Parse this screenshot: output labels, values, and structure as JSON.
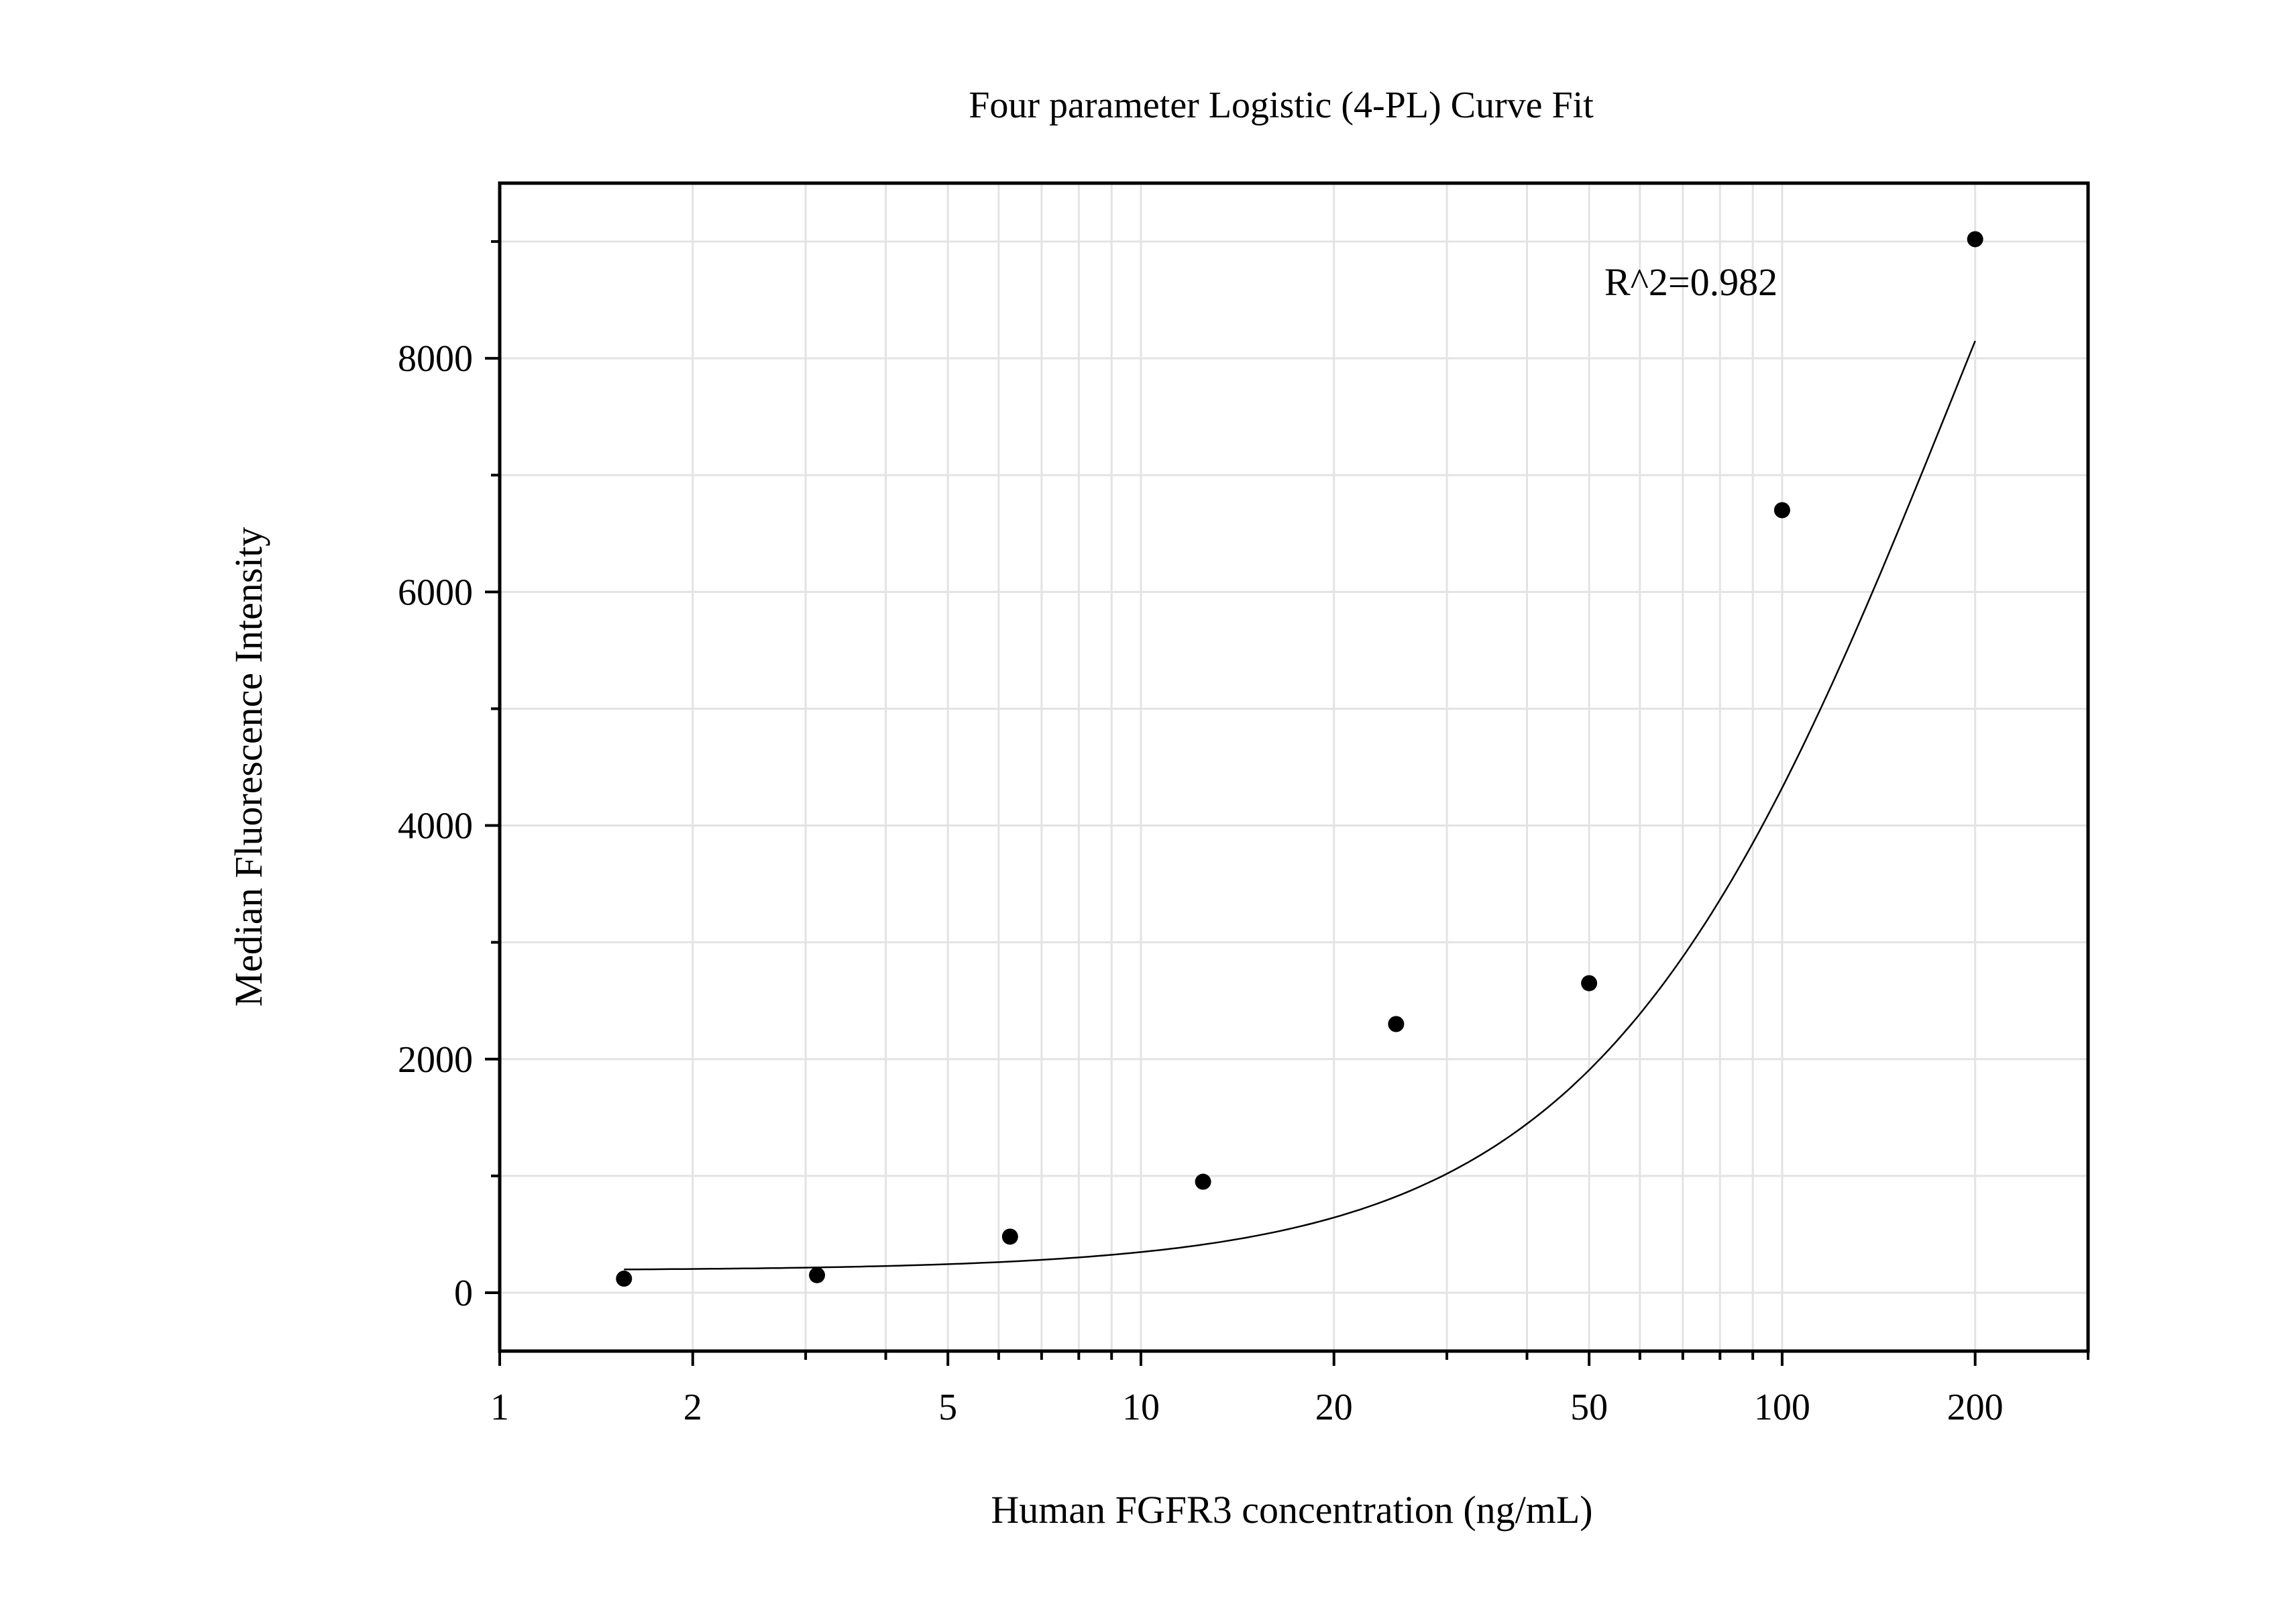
{
  "chart_data": {
    "type": "scatter",
    "title": "Four parameter Logistic (4-PL) Curve Fit",
    "xlabel": "Human FGFR3 concentration (ng/mL)",
    "ylabel": "Median Fluorescence Intensity",
    "x_scale": "log",
    "xlim": [
      1,
      300
    ],
    "ylim": [
      -500,
      9500
    ],
    "x_ticks": [
      1,
      2,
      5,
      10,
      20,
      50,
      100,
      200
    ],
    "x_tick_labels": [
      "1",
      "2",
      "5",
      "10",
      "20",
      "50",
      "100",
      "200"
    ],
    "y_ticks": [
      0,
      2000,
      4000,
      6000,
      8000
    ],
    "y_tick_labels": [
      "0",
      "2000",
      "4000",
      "6000",
      "8000"
    ],
    "grid": true,
    "annotation": "R^2=0.982",
    "series": [
      {
        "x": [
          1.5625,
          3.125,
          6.25,
          12.5,
          25,
          50,
          100,
          200
        ],
        "y": [
          120,
          150,
          480,
          950,
          2300,
          2650,
          6700,
          9020
        ]
      }
    ],
    "fit_curve": {
      "x_range": [
        1.5625,
        200
      ],
      "y_range": [
        220,
        9120
      ]
    }
  }
}
